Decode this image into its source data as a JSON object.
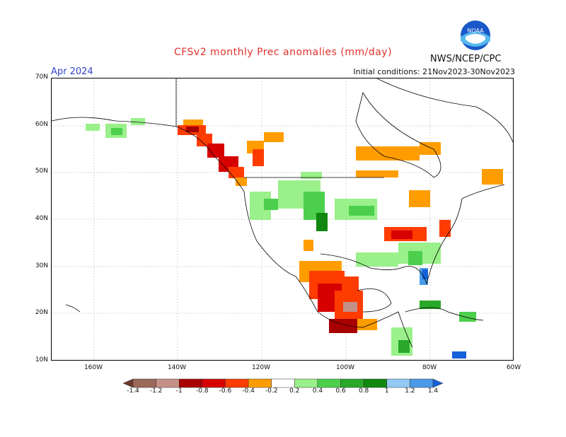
{
  "title": "CFSv2 monthly Prec anomalies (mm/day)",
  "month": "Apr 2024",
  "agency": "NWS/NCEP/CPC",
  "initial_conditions": "Initial conditions: 21Nov2023-30Nov2023",
  "logo_text": "NOAA",
  "lat_labels": [
    "70N",
    "60N",
    "50N",
    "40N",
    "30N",
    "20N",
    "10N"
  ],
  "lon_labels": [
    "160W",
    "140W",
    "120W",
    "100W",
    "80W",
    "60W"
  ],
  "colorbar": {
    "ticks": [
      "-1.4",
      "-1.2",
      "-1",
      "-0.8",
      "-0.6",
      "-0.4",
      "-0.2",
      "0.2",
      "0.4",
      "0.6",
      "0.8",
      "1",
      "1.2",
      "1.4"
    ],
    "colors": [
      "#6b3a2a",
      "#9b6a5a",
      "#c49088",
      "#a80000",
      "#d70000",
      "#ff3c00",
      "#ff9d00",
      "#ffffff",
      "#9af08a",
      "#4ccf4c",
      "#29a829",
      "#108810",
      "#93c8f4",
      "#4a9ae8",
      "#1460d8"
    ]
  }
}
